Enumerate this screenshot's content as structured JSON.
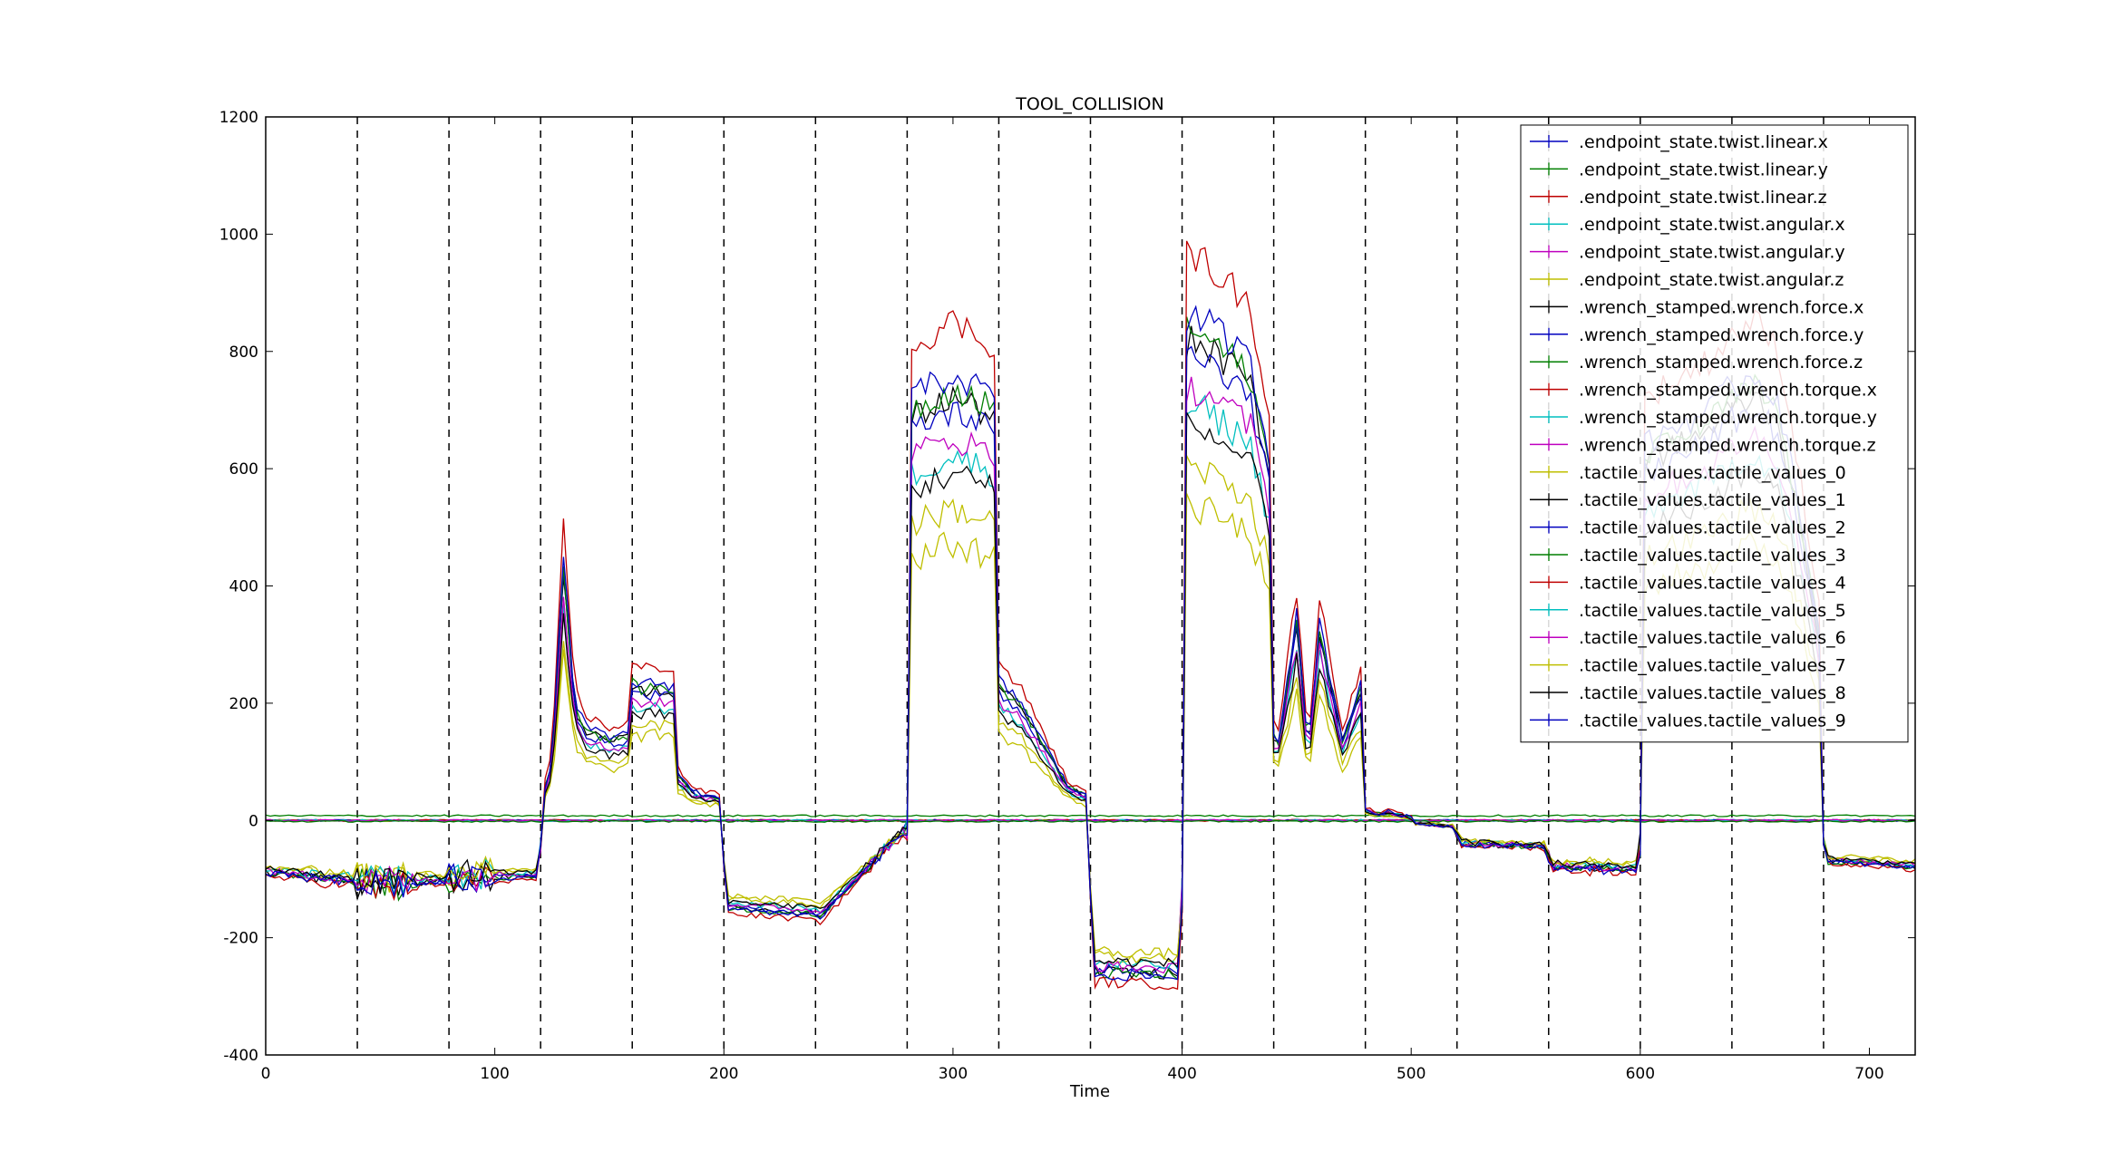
{
  "chart_data": {
    "type": "line",
    "title": "TOOL_COLLISION",
    "xlabel": "Time",
    "ylabel": "",
    "xlim": [
      0,
      720
    ],
    "ylim": [
      -400,
      1200
    ],
    "xticks": [
      0,
      100,
      200,
      300,
      400,
      500,
      600,
      700
    ],
    "yticks": [
      -400,
      -200,
      0,
      200,
      400,
      600,
      800,
      1000,
      1200
    ],
    "grid": false,
    "legend_position": "top-right",
    "vlines": [
      40,
      80,
      120,
      160,
      200,
      240,
      280,
      320,
      360,
      400,
      440,
      480,
      520,
      560,
      600,
      640,
      680
    ],
    "vline_style": "dashed-black",
    "series": [
      {
        "name": ".endpoint_state.twist.linear.x",
        "color": "#0000bf",
        "group": "zero",
        "offset": 0
      },
      {
        "name": ".endpoint_state.twist.linear.y",
        "color": "#007f00",
        "group": "force_z",
        "offset": 0
      },
      {
        "name": ".endpoint_state.twist.linear.z",
        "color": "#bf0000",
        "group": "zero",
        "offset": 0
      },
      {
        "name": ".endpoint_state.twist.angular.x",
        "color": "#00bfbf",
        "group": "zero",
        "offset": 0
      },
      {
        "name": ".endpoint_state.twist.angular.y",
        "color": "#bf00bf",
        "group": "zero",
        "offset": 0
      },
      {
        "name": ".endpoint_state.twist.angular.z",
        "color": "#bfbf00",
        "group": "zero",
        "offset": 0
      },
      {
        "name": ".wrench_stamped.wrench.force.x",
        "color": "#000000",
        "group": "zero",
        "offset": 0
      },
      {
        "name": ".wrench_stamped.wrench.force.y",
        "color": "#0000bf",
        "group": "zero",
        "offset": 0
      },
      {
        "name": ".wrench_stamped.wrench.force.z",
        "color": "#007f00",
        "group": "force_z",
        "offset": 0
      },
      {
        "name": ".wrench_stamped.wrench.torque.x",
        "color": "#bf0000",
        "group": "zero",
        "offset": 0
      },
      {
        "name": ".wrench_stamped.wrench.torque.y",
        "color": "#00bfbf",
        "group": "zero",
        "offset": 0
      },
      {
        "name": ".wrench_stamped.wrench.torque.z",
        "color": "#bf00bf",
        "group": "zero",
        "offset": 0
      },
      {
        "name": ".tactile_values.tactile_values_0",
        "color": "#bfbf00",
        "group": "tactile",
        "scale": 0.7
      },
      {
        "name": ".tactile_values.tactile_values_1",
        "color": "#000000",
        "group": "tactile",
        "scale": 0.95
      },
      {
        "name": ".tactile_values.tactile_values_2",
        "color": "#0000bf",
        "group": "tactile",
        "scale": 0.92
      },
      {
        "name": ".tactile_values.tactile_values_3",
        "color": "#007f00",
        "group": "tactile",
        "scale": 0.97
      },
      {
        "name": ".tactile_values.tactile_values_4",
        "color": "#bf0000",
        "group": "tactile",
        "scale": 1.12
      },
      {
        "name": ".tactile_values.tactile_values_5",
        "color": "#00bfbf",
        "group": "tactile",
        "scale": 0.82
      },
      {
        "name": ".tactile_values.tactile_values_6",
        "color": "#bf00bf",
        "group": "tactile",
        "scale": 0.86
      },
      {
        "name": ".tactile_values.tactile_values_7",
        "color": "#bfbf00",
        "group": "tactile",
        "scale": 0.62
      },
      {
        "name": ".tactile_values.tactile_values_8",
        "color": "#000000",
        "group": "tactile",
        "scale": 0.78
      },
      {
        "name": ".tactile_values.tactile_values_9",
        "color": "#0000bf",
        "group": "tactile",
        "scale": 1.0
      }
    ],
    "tactile_profile": {
      "x": [
        0,
        10,
        15,
        18,
        22,
        35,
        39,
        40,
        42,
        50,
        60,
        62,
        65,
        68,
        75,
        79,
        80,
        82,
        90,
        96,
        98,
        100,
        105,
        110,
        118,
        120,
        122,
        125,
        130,
        135,
        140,
        150,
        159,
        160,
        163,
        170,
        178,
        180,
        185,
        190,
        199,
        200,
        202,
        210,
        220,
        230,
        239,
        240,
        245,
        250,
        255,
        260,
        265,
        270,
        279,
        280,
        282,
        290,
        300,
        310,
        319,
        320,
        322,
        330,
        340,
        350,
        359,
        360,
        362,
        370,
        380,
        390,
        399,
        400,
        402,
        410,
        420,
        430,
        439,
        440,
        442,
        450,
        455,
        460,
        470,
        478,
        480,
        485,
        490,
        500,
        510,
        519,
        520,
        522,
        530,
        540,
        550,
        559,
        560,
        565,
        575,
        580,
        585,
        590,
        599,
        600,
        602,
        610,
        620,
        630,
        640,
        650,
        660,
        670,
        679,
        680,
        685,
        700,
        720
      ],
      "y": [
        110,
        110,
        105,
        220,
        200,
        210,
        225,
        820,
        840,
        845,
        850,
        600,
        200,
        150,
        110,
        105,
        780,
        790,
        795,
        780,
        650,
        150,
        60,
        40,
        45,
        180,
        60,
        100,
        450,
        200,
        160,
        140,
        150,
        240,
        230,
        235,
        230,
        80,
        55,
        45,
        40,
        40,
        45,
        50,
        70,
        75,
        65,
        -5,
        -10,
        140,
        -15,
        90,
        150,
        220,
        250,
        700,
        720,
        740,
        760,
        740,
        720,
        240,
        230,
        200,
        130,
        60,
        40,
        220,
        230,
        225,
        215,
        205,
        215,
        820,
        860,
        850,
        820,
        780,
        600,
        150,
        140,
        350,
        120,
        340,
        140,
        230,
        20,
        10,
        15,
        5,
        0,
        -15,
        90,
        95,
        80,
        70,
        60,
        50,
        180,
        100,
        80,
        240,
        200,
        60,
        60,
        620,
        640,
        660,
        680,
        700,
        740,
        760,
        720,
        520,
        300,
        140,
        60,
        40,
        40
      ]
    },
    "force_profile": {
      "x": [
        0,
        38,
        41,
        78,
        82,
        118,
        122,
        158,
        162,
        198,
        202,
        238,
        242,
        278,
        282,
        318,
        322,
        358,
        362,
        398,
        402,
        438,
        442,
        478,
        482,
        518,
        522,
        558,
        562,
        598,
        602,
        638,
        642,
        678,
        682,
        720
      ],
      "y": [
        -90,
        -105,
        -110,
        -105,
        -100,
        -95,
        0,
        0,
        0,
        0,
        -150,
        -160,
        -165,
        -20,
        0,
        0,
        0,
        0,
        -260,
        -265,
        0,
        0,
        0,
        0,
        0,
        -10,
        -40,
        -45,
        -80,
        -85,
        0,
        0,
        0,
        0,
        -70,
        -80
      ]
    },
    "force_z_level": 8
  }
}
